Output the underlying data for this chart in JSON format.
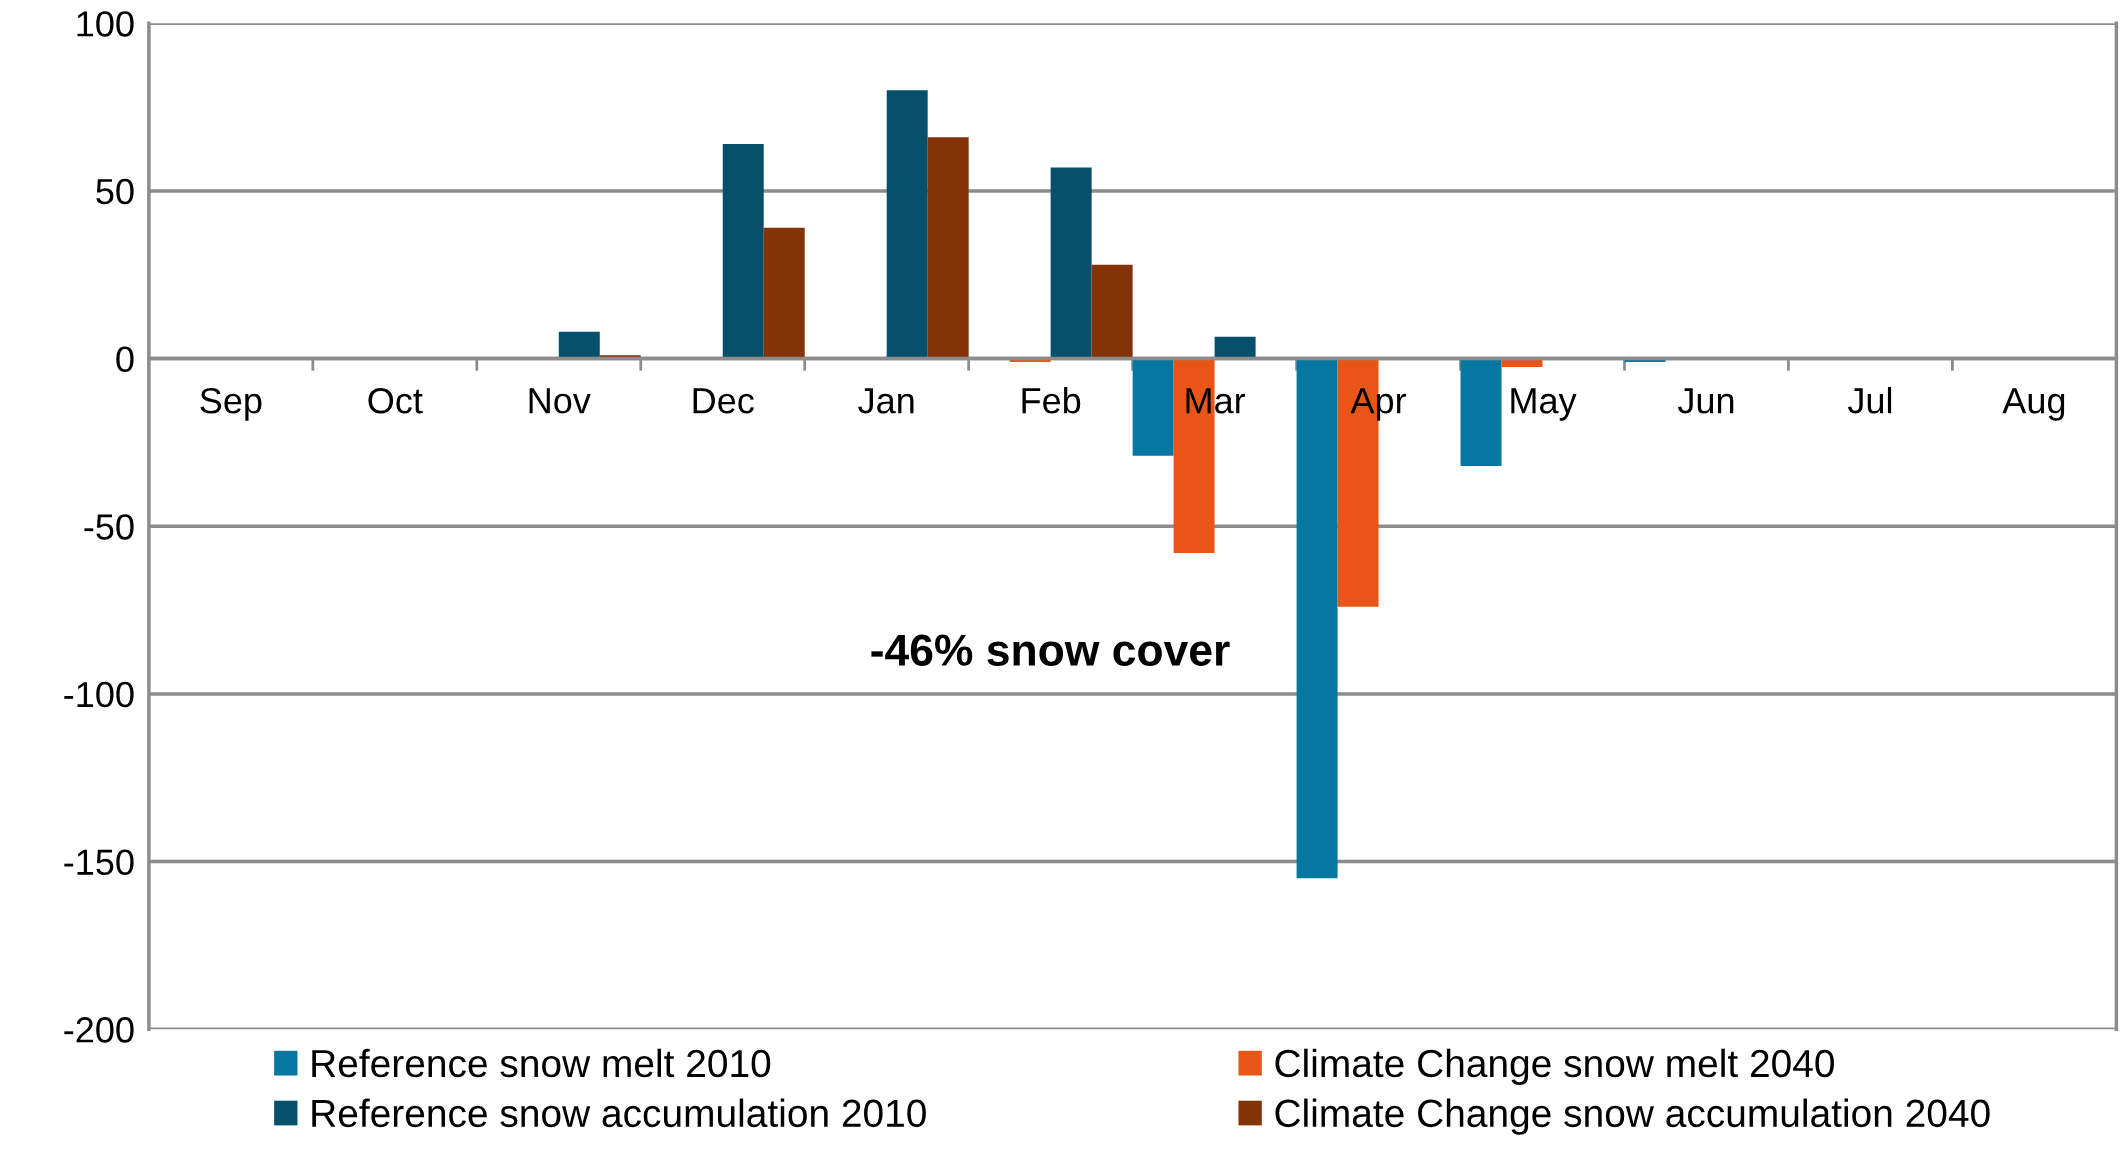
{
  "chart_data": {
    "type": "bar",
    "categories": [
      "Sep",
      "Oct",
      "Nov",
      "Dec",
      "Jan",
      "Feb",
      "Mar",
      "Apr",
      "May",
      "Jun",
      "Jul",
      "Aug"
    ],
    "series": [
      {
        "name": "Reference snow melt 2010",
        "color": "#0677a3",
        "values": [
          null,
          null,
          null,
          null,
          null,
          null,
          -29,
          -155,
          -32,
          -1,
          null,
          null
        ]
      },
      {
        "name": "Climate Change snow melt 2040",
        "color": "#e95517",
        "values": [
          null,
          null,
          null,
          null,
          null,
          -1,
          -58,
          -74,
          -2.5,
          null,
          null,
          null
        ]
      },
      {
        "name": "Reference snow accumulation 2010",
        "color": "#07506b",
        "values": [
          null,
          null,
          8,
          64,
          80,
          57,
          6.5,
          null,
          null,
          null,
          null,
          null
        ]
      },
      {
        "name": "Climate Change snow accumulation 2040",
        "color": "#843207",
        "values": [
          null,
          null,
          1,
          39,
          66,
          28,
          null,
          null,
          null,
          null,
          null,
          null
        ]
      }
    ],
    "ylim": [
      -200,
      100
    ],
    "yticks": [
      -200,
      -150,
      -100,
      -50,
      0,
      50,
      100
    ],
    "grid": "y",
    "legend": "bottom",
    "annotations": [
      "-46% snow cover"
    ]
  }
}
